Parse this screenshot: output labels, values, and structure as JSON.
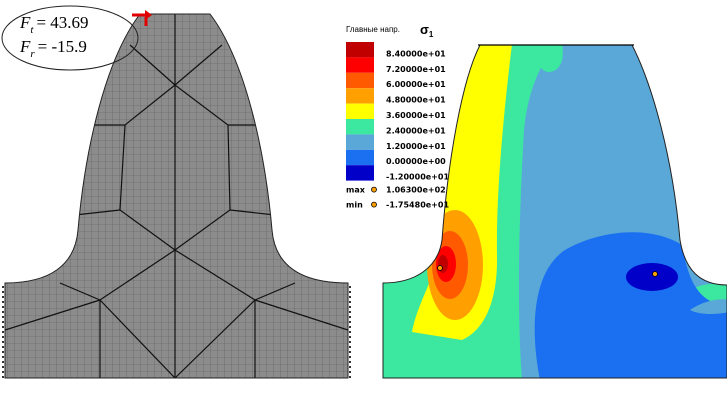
{
  "annotations": [
    {
      "symbol": "F",
      "subscript": "t",
      "value": "= 43.69"
    },
    {
      "symbol": "F",
      "subscript": "r",
      "value": "-15.9"
    }
  ],
  "legend": {
    "title": "Главные напр.",
    "symbol": "σ",
    "symbol_subscript": "1",
    "entries": [
      {
        "label": "8.40000e+01",
        "color": "#c00000"
      },
      {
        "label": "7.20000e+01",
        "color": "#ff0000"
      },
      {
        "label": "6.00000e+01",
        "color": "#ff5a00"
      },
      {
        "label": "4.80000e+01",
        "color": "#ffa000"
      },
      {
        "label": "3.60000e+01",
        "color": "#ffff00"
      },
      {
        "label": "2.40000e+01",
        "color": "#3ce8a0"
      },
      {
        "label": "1.20000e+01",
        "color": "#5aa8d8"
      },
      {
        "label": "0.00000e+00",
        "color": "#1a70f0"
      },
      {
        "label": "-1.20000e+01",
        "color": "#0000c8"
      }
    ],
    "max_label": "max",
    "max_value": "1.06300e+02",
    "min_label": "min",
    "min_value": "-1.75480e+01"
  }
}
